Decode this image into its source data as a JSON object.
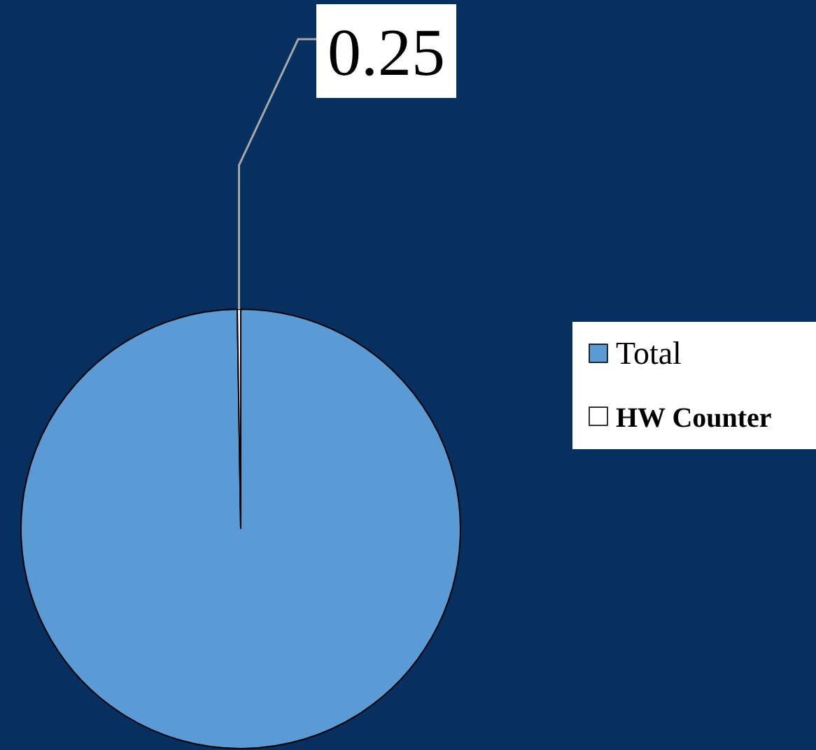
{
  "chart_data": {
    "type": "pie",
    "categories": [
      "Total",
      "HW Counter"
    ],
    "values": [
      99.75,
      0.25
    ],
    "colors": [
      "#5b9bd5",
      "#ffffff"
    ],
    "value_labels": [
      null,
      "0.25"
    ],
    "legend": "right"
  }
}
